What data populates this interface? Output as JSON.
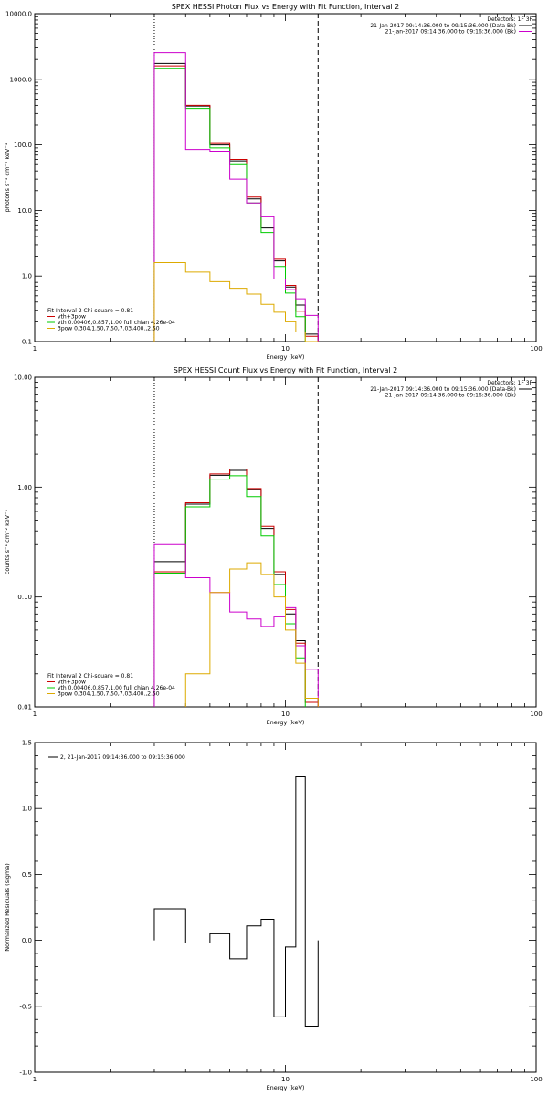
{
  "chart_data": [
    {
      "type": "line",
      "title": "SPEX HESSI Photon Flux vs Energy with Fit Function, Interval 2",
      "xlabel": "Energy (keV)",
      "ylabel": "photons s⁻¹ cm⁻² keV⁻¹",
      "xscale": "log",
      "yscale": "log",
      "xlim": [
        1,
        100
      ],
      "ylim": [
        0.1,
        10000
      ],
      "xticks": [
        {
          "v": 1,
          "label": "1"
        },
        {
          "v": 10,
          "label": "10"
        },
        {
          "v": 100,
          "label": "100"
        }
      ],
      "yticks": [
        {
          "v": 0.1,
          "label": "0.1"
        },
        {
          "v": 1,
          "label": "1.0"
        },
        {
          "v": 10,
          "label": "10.0"
        },
        {
          "v": 100,
          "label": "100.0"
        },
        {
          "v": 1000,
          "label": "1000.0"
        },
        {
          "v": 10000,
          "label": "10000.0"
        }
      ],
      "vlines": [
        {
          "x": 3.0,
          "style": "dotted"
        },
        {
          "x": 13.5,
          "style": "dashed"
        }
      ],
      "edges": [
        3.0,
        4.0,
        5.0,
        6.0,
        7.0,
        8.0,
        9.0,
        10.0,
        11.0,
        12.0,
        13.5
      ],
      "top_legend": {
        "heading": "Detectors: 1F 3F",
        "entries": [
          {
            "text": "21-Jan-2017 09:14:36.000 to 09:15:36.000 (Data-Bk)",
            "color": "#000000"
          },
          {
            "text": "21-Jan-2017 09:14:36.000 to 09:16:36.000 (Bk)",
            "color": "#cc00cc"
          }
        ]
      },
      "bottom_legend": {
        "heading": "Fit Interval 2   Chi-square = 0.81",
        "entries": [
          {
            "text": "vth+3pow",
            "color": "#cc0000"
          },
          {
            "text": "vth 0.00406,0.857,1.00  full chian 4.26e-04",
            "color": "#00cc00"
          },
          {
            "text": "3pow 0.304,1.50,7.50,7.03,400.,2.50",
            "color": "#ddaa00"
          }
        ]
      },
      "series": [
        {
          "color": "#000000",
          "values": [
            1750,
            390,
            100,
            57,
            15,
            5.4,
            1.7,
            0.68,
            0.36,
            0.13
          ]
        },
        {
          "color": "#cc0000",
          "values": [
            1600,
            400,
            105,
            60,
            16,
            5.6,
            1.8,
            0.72,
            0.29,
            0.12
          ]
        },
        {
          "color": "#00cc00",
          "values": [
            1450,
            360,
            90,
            50,
            13,
            4.6,
            1.4,
            0.55,
            0.24,
            0.1
          ]
        },
        {
          "color": "#cc00cc",
          "values": [
            2550,
            85,
            80,
            30,
            13,
            8,
            0.9,
            0.62,
            0.45,
            0.25
          ]
        },
        {
          "color": "#ddaa00",
          "values": [
            1.6,
            1.15,
            0.82,
            0.65,
            0.53,
            0.37,
            0.28,
            0.2,
            0.14,
            0.1
          ]
        }
      ]
    },
    {
      "type": "line",
      "title": "SPEX HESSI Count Flux vs Energy with Fit Function, Interval 2",
      "xlabel": "Energy (keV)",
      "ylabel": "counts s⁻¹ cm⁻² keV⁻¹",
      "xscale": "log",
      "yscale": "log",
      "xlim": [
        1,
        100
      ],
      "ylim": [
        0.01,
        10
      ],
      "xticks": [
        {
          "v": 1,
          "label": "1"
        },
        {
          "v": 10,
          "label": "10"
        },
        {
          "v": 100,
          "label": "100"
        }
      ],
      "yticks": [
        {
          "v": 0.01,
          "label": "0.01"
        },
        {
          "v": 0.1,
          "label": "0.10"
        },
        {
          "v": 1,
          "label": "1.00"
        },
        {
          "v": 10,
          "label": "10.00"
        }
      ],
      "vlines": [
        {
          "x": 3.0,
          "style": "dotted"
        },
        {
          "x": 13.5,
          "style": "dashed"
        }
      ],
      "edges": [
        3.0,
        4.0,
        5.0,
        6.0,
        7.0,
        8.0,
        9.0,
        10.0,
        11.0,
        12.0,
        13.5
      ],
      "top_legend": {
        "heading": "Detectors: 1F 3F",
        "entries": [
          {
            "text": "21-Jan-2017 09:14:36.000 to 09:15:36.000 (Data-Bk)",
            "color": "#000000"
          },
          {
            "text": "21-Jan-2017 09:14:36.000 to 09:16:36.000 (Bk)",
            "color": "#cc00cc"
          }
        ]
      },
      "bottom_legend": {
        "heading": "Fit Interval 2   Chi-square = 0.81",
        "entries": [
          {
            "text": "vth+3pow",
            "color": "#cc0000"
          },
          {
            "text": "vth 0.00406,0.857,1.00  full chian 4.26e-04",
            "color": "#00cc00"
          },
          {
            "text": "3pow 0.304,1.50,7.50,7.03,400.,2.50",
            "color": "#ddaa00"
          }
        ]
      },
      "series": [
        {
          "color": "#000000",
          "values": [
            0.21,
            0.7,
            1.28,
            1.42,
            0.95,
            0.42,
            0.16,
            0.07,
            0.04,
            0.012
          ]
        },
        {
          "color": "#cc0000",
          "values": [
            0.17,
            0.72,
            1.32,
            1.46,
            0.97,
            0.44,
            0.17,
            0.077,
            0.038,
            0.011
          ]
        },
        {
          "color": "#00cc00",
          "values": [
            0.165,
            0.66,
            1.18,
            1.27,
            0.82,
            0.36,
            0.13,
            0.057,
            0.028,
            0.008
          ]
        },
        {
          "color": "#cc00cc",
          "values": [
            0.3,
            0.15,
            0.11,
            0.073,
            0.063,
            0.054,
            0.067,
            0.08,
            0.036,
            0.022
          ]
        },
        {
          "color": "#ddaa00",
          "values": [
            0.0,
            0.02,
            0.11,
            0.18,
            0.205,
            0.16,
            0.1,
            0.05,
            0.025,
            0.012
          ]
        }
      ]
    },
    {
      "type": "line",
      "title": "",
      "xlabel": "Energy (keV)",
      "ylabel": "Normalized Residuals (sigma)",
      "xscale": "log",
      "yscale": "linear",
      "xlim": [
        1,
        100
      ],
      "ylim": [
        -1.0,
        1.5
      ],
      "xticks": [
        {
          "v": 1,
          "label": "1"
        },
        {
          "v": 10,
          "label": "10"
        },
        {
          "v": 100,
          "label": "100"
        }
      ],
      "yticks": [
        {
          "v": -1.0,
          "label": "-1.0"
        },
        {
          "v": -0.5,
          "label": "-0.5"
        },
        {
          "v": 0.0,
          "label": "0.0"
        },
        {
          "v": 0.5,
          "label": "0.5"
        },
        {
          "v": 1.0,
          "label": "1.0"
        },
        {
          "v": 1.5,
          "label": "1.5"
        }
      ],
      "edges": [
        3.0,
        4.0,
        5.0,
        6.0,
        7.0,
        8.0,
        9.0,
        10.0,
        11.0,
        12.0,
        13.5
      ],
      "legend": {
        "text": "2, 21-Jan-2017 09:14:36.000 to 09:15:36.000",
        "color": "#000000"
      },
      "series": [
        {
          "color": "#000000",
          "values": [
            0.24,
            -0.02,
            0.05,
            -0.14,
            0.11,
            0.16,
            -0.58,
            -0.05,
            1.24,
            -0.65
          ]
        }
      ]
    }
  ]
}
